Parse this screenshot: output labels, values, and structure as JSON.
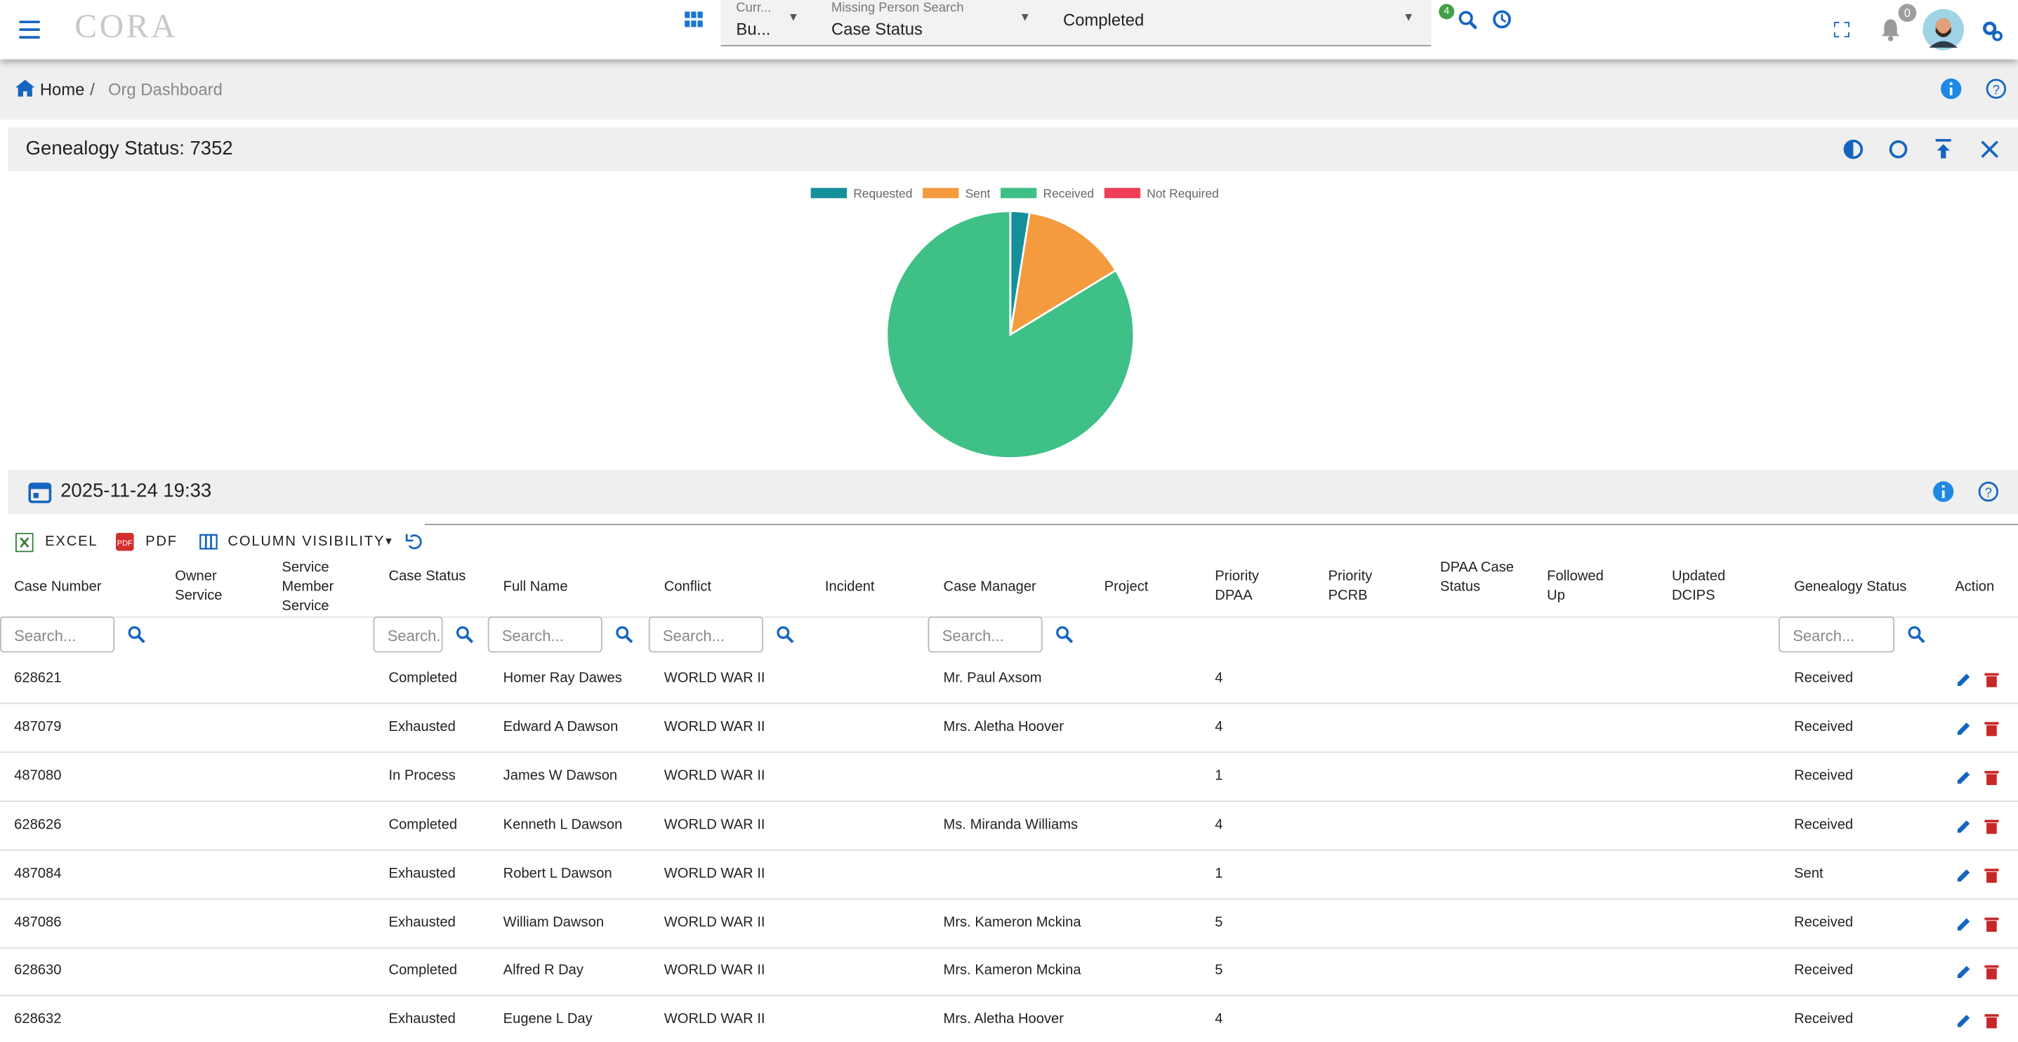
{
  "topbar": {
    "logo": "CORA",
    "current_label": "Curr...",
    "current_value": "Bu...",
    "search_label": "Missing Person Search",
    "search_field": "Case Status",
    "search_value": "Completed",
    "filter_badge": "4",
    "notification_badge": "0"
  },
  "breadcrumb": {
    "home": "Home",
    "current": "Org Dashboard"
  },
  "chart_data": {
    "type": "pie",
    "title": "Genealogy Status: 7352",
    "categories": [
      "Requested",
      "Sent",
      "Received",
      "Not Required"
    ],
    "values": [
      184,
      1014,
      6154,
      0
    ],
    "colors": [
      "#15909b",
      "#f39b3e",
      "#3ec086",
      "#ef3e55"
    ]
  },
  "table_panel": {
    "timestamp": "2025-11-24 19:33",
    "excel": "EXCEL",
    "pdf": "PDF",
    "column_visibility": "COLUMN VISIBILITY",
    "search_placeholder": "Search..."
  },
  "table": {
    "columns": [
      "Case Number",
      "Owner Service",
      "Service Member Service",
      "Case Status",
      "Full Name",
      "Conflict",
      "Incident",
      "Case Manager",
      "Project",
      "Priority DPAA",
      "Priority PCRB",
      "DPAA Case Status",
      "Followed Up",
      "Updated DCIPS",
      "Genealogy Status",
      "Action"
    ],
    "rows": [
      [
        "628621",
        null,
        null,
        "Completed",
        "Homer Ray Dawes",
        "WORLD WAR II",
        null,
        "Mr. Paul Axsom",
        null,
        4,
        null,
        null,
        null,
        null,
        "Received"
      ],
      [
        "487079",
        null,
        null,
        "Exhausted",
        "Edward A Dawson",
        "WORLD WAR II",
        null,
        "Mrs. Aletha Hoover",
        null,
        4,
        null,
        null,
        null,
        null,
        "Received"
      ],
      [
        "487080",
        null,
        null,
        "In Process",
        "James W Dawson",
        "WORLD WAR II",
        null,
        null,
        null,
        1,
        null,
        null,
        null,
        null,
        "Received"
      ],
      [
        "628626",
        null,
        null,
        "Completed",
        "Kenneth L Dawson",
        "WORLD WAR II",
        null,
        "Ms. Miranda Williams",
        null,
        4,
        null,
        null,
        null,
        null,
        "Received"
      ],
      [
        "487084",
        null,
        null,
        "Exhausted",
        "Robert L Dawson",
        "WORLD WAR II",
        null,
        null,
        null,
        1,
        null,
        null,
        null,
        null,
        "Sent"
      ],
      [
        "487086",
        null,
        null,
        "Exhausted",
        "William Dawson",
        "WORLD WAR II",
        null,
        "Mrs. Kameron Mckina",
        null,
        5,
        null,
        null,
        null,
        null,
        "Received"
      ],
      [
        "628630",
        null,
        null,
        "Completed",
        "Alfred R Day",
        "WORLD WAR II",
        null,
        "Mrs. Kameron Mckina",
        null,
        5,
        null,
        null,
        null,
        null,
        "Received"
      ],
      [
        "628632",
        null,
        null,
        "Exhausted",
        "Eugene L Day",
        "WORLD WAR II",
        null,
        "Mrs. Aletha Hoover",
        null,
        4,
        null,
        null,
        null,
        null,
        "Received"
      ]
    ]
  }
}
